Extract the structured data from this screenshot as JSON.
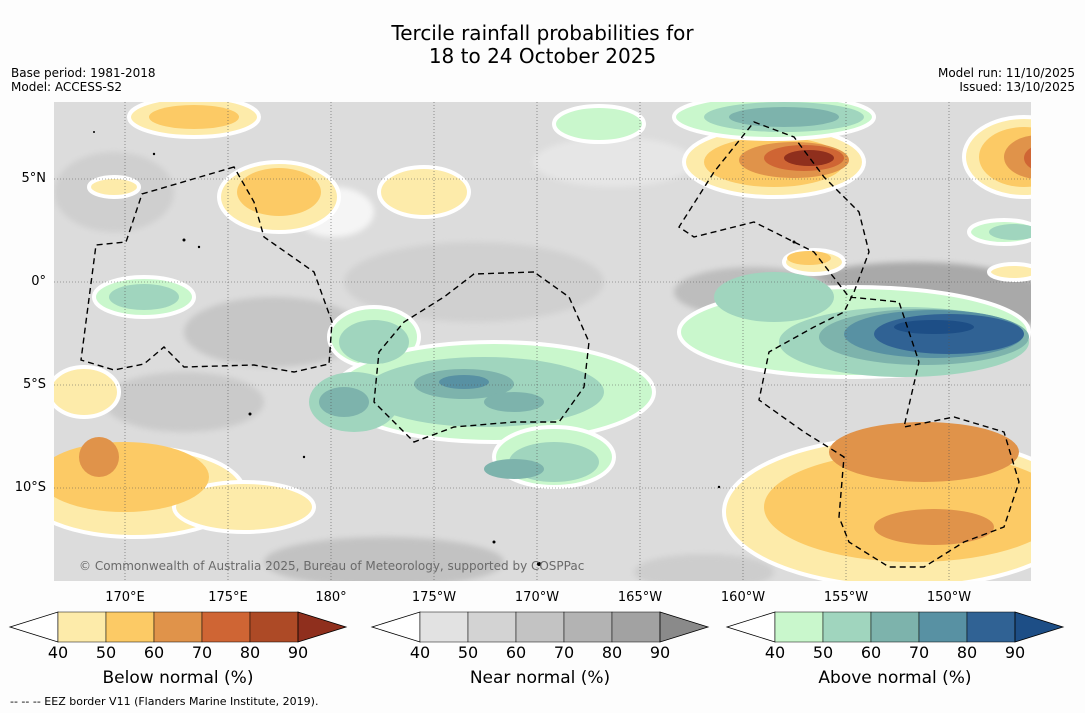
{
  "title_line1": "Tercile rainfall probabilities for",
  "title_line2": "18 to 24 October 2025",
  "meta": {
    "base_period": "Base period: 1981-2018",
    "model": "Model: ACCESS-S2",
    "model_run": "Model run: 11/10/2025",
    "issued": "Issued: 13/10/2025"
  },
  "lat_labels": [
    "5°N",
    "0°",
    "5°S",
    "10°S"
  ],
  "lon_labels": [
    "170°E",
    "175°E",
    "180°",
    "175°W",
    "170°W",
    "165°W",
    "160°W",
    "155°W",
    "150°W"
  ],
  "copyright": "© Commonwealth of Australia 2025, Bureau of Meteorology, supported by COSPPac",
  "colorbars": [
    {
      "label": "Below normal (%)",
      "ticks": [
        "40",
        "50",
        "60",
        "70",
        "80",
        "90"
      ],
      "colors": [
        "#fdebaa",
        "#fcca65",
        "#e0934a",
        "#cf6534",
        "#ad4a26",
        "#8f2f1d"
      ]
    },
    {
      "label": "Near normal (%)",
      "ticks": [
        "40",
        "50",
        "60",
        "70",
        "80",
        "90"
      ],
      "colors": [
        "#e2e2e2",
        "#d3d3d3",
        "#c3c3c3",
        "#b3b3b3",
        "#a2a2a2",
        "#8a8a8a"
      ]
    },
    {
      "label": "Above normal (%)",
      "ticks": [
        "40",
        "50",
        "60",
        "70",
        "80",
        "90"
      ],
      "colors": [
        "#c9f7cc",
        "#a0d5be",
        "#7db3ac",
        "#5891a3",
        "#306294",
        "#1d4e86"
      ]
    }
  ],
  "footnote": "-- -- -- EEZ border V11 (Flanders Marine Institute, 2019)."
}
